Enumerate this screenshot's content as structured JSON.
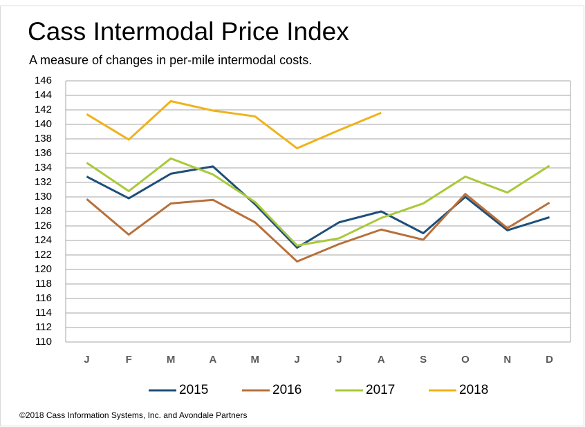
{
  "chart_data": {
    "type": "line",
    "title": "Cass Intermodal Price Index",
    "subtitle": "A measure of changes in per-mile intermodal costs.",
    "source": "©2018 Cass Information Systems, Inc. and Avondale Partners",
    "categories": [
      "J",
      "F",
      "M",
      "A",
      "M",
      "J",
      "J",
      "A",
      "S",
      "O",
      "N",
      "D"
    ],
    "series": [
      {
        "name": "2015",
        "color": "#1f4e79",
        "values": [
          132.8,
          129.8,
          133.2,
          134.2,
          129,
          123,
          126.5,
          128,
          125,
          130,
          125.4,
          127.2
        ]
      },
      {
        "name": "2016",
        "color": "#b8703a",
        "values": [
          129.7,
          124.8,
          129.1,
          129.6,
          126.5,
          121.1,
          123.5,
          125.5,
          124.1,
          130.4,
          125.7,
          129.2
        ]
      },
      {
        "name": "2017",
        "color": "#a9c93a",
        "values": [
          134.7,
          130.8,
          135.3,
          133.1,
          129.3,
          123.3,
          124.3,
          127.1,
          129.1,
          132.8,
          130.6,
          134.3
        ]
      },
      {
        "name": "2018",
        "color": "#f0b21a",
        "values": [
          141.4,
          137.9,
          143.2,
          141.9,
          141.1,
          136.7,
          139.2,
          141.6,
          null,
          null,
          null,
          null
        ]
      }
    ],
    "ylim": [
      110,
      146
    ],
    "yticks": [
      110,
      112,
      114,
      116,
      118,
      120,
      122,
      124,
      126,
      128,
      130,
      132,
      134,
      136,
      138,
      140,
      142,
      144,
      146
    ],
    "grid": true,
    "legend": "bottom"
  }
}
